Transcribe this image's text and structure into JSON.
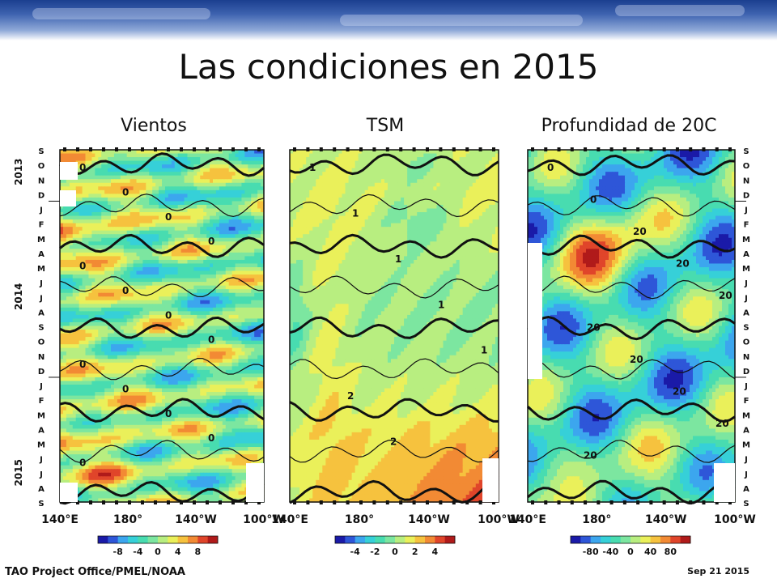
{
  "slide": {
    "title": "Las condiciones en 2015",
    "footer_left": "TAO Project Office/PMEL/NOAA",
    "footer_right": "Sep 21 2015"
  },
  "chart_data": [
    {
      "type": "heatmap",
      "title": "Vientos",
      "x_ticks": [
        "140°E",
        "180°",
        "140°W",
        "100°W"
      ],
      "colorbar_ticks": [
        "-8",
        "-4",
        "0",
        "4",
        "8"
      ],
      "colorbar_range": [
        -10,
        10
      ],
      "contour_labels": [
        "0",
        "0",
        "0",
        "0",
        "0",
        "0",
        "0",
        "0",
        "0",
        "0",
        "0",
        "0",
        "0"
      ],
      "months": [
        "S",
        "O",
        "N",
        "D",
        "J",
        "F",
        "M",
        "A",
        "M",
        "J",
        "J",
        "A",
        "S",
        "O",
        "N",
        "D",
        "J",
        "F",
        "M",
        "A",
        "M",
        "J",
        "J",
        "A",
        "S"
      ],
      "years": [
        "2013",
        "2014",
        "2015"
      ]
    },
    {
      "type": "heatmap",
      "title": "TSM",
      "x_ticks": [
        "140°E",
        "180°",
        "140°W",
        "100°W"
      ],
      "colorbar_ticks": [
        "-4",
        "-2",
        "0",
        "2",
        "4"
      ],
      "colorbar_range": [
        -5,
        5
      ],
      "contour_labels": [
        "1",
        "1",
        "1",
        "1",
        "1",
        "2",
        "2"
      ]
    },
    {
      "type": "heatmap",
      "title": "Profundidad de 20C",
      "x_ticks": [
        "140°E",
        "180°",
        "140°W",
        "100°W"
      ],
      "colorbar_ticks": [
        "-80",
        "-40",
        "0",
        "40",
        "80"
      ],
      "colorbar_range": [
        -100,
        100
      ],
      "contour_labels": [
        "0",
        "0",
        "20",
        "20",
        "20",
        "20",
        "20",
        "20",
        "20",
        "20"
      ],
      "months": [
        "S",
        "O",
        "N",
        "D",
        "J",
        "F",
        "M",
        "A",
        "M",
        "J",
        "J",
        "A",
        "S",
        "O",
        "N",
        "D",
        "J",
        "F",
        "M",
        "A",
        "M",
        "J",
        "J",
        "A",
        "S"
      ]
    }
  ],
  "colors": {
    "colormap": [
      "#1a1aa8",
      "#2e56d8",
      "#3ca6ee",
      "#36d0d8",
      "#48dcb0",
      "#7ce6a0",
      "#b8ee80",
      "#eaf05a",
      "#f6c23e",
      "#f28a34",
      "#e0452a",
      "#b01a1a"
    ]
  }
}
